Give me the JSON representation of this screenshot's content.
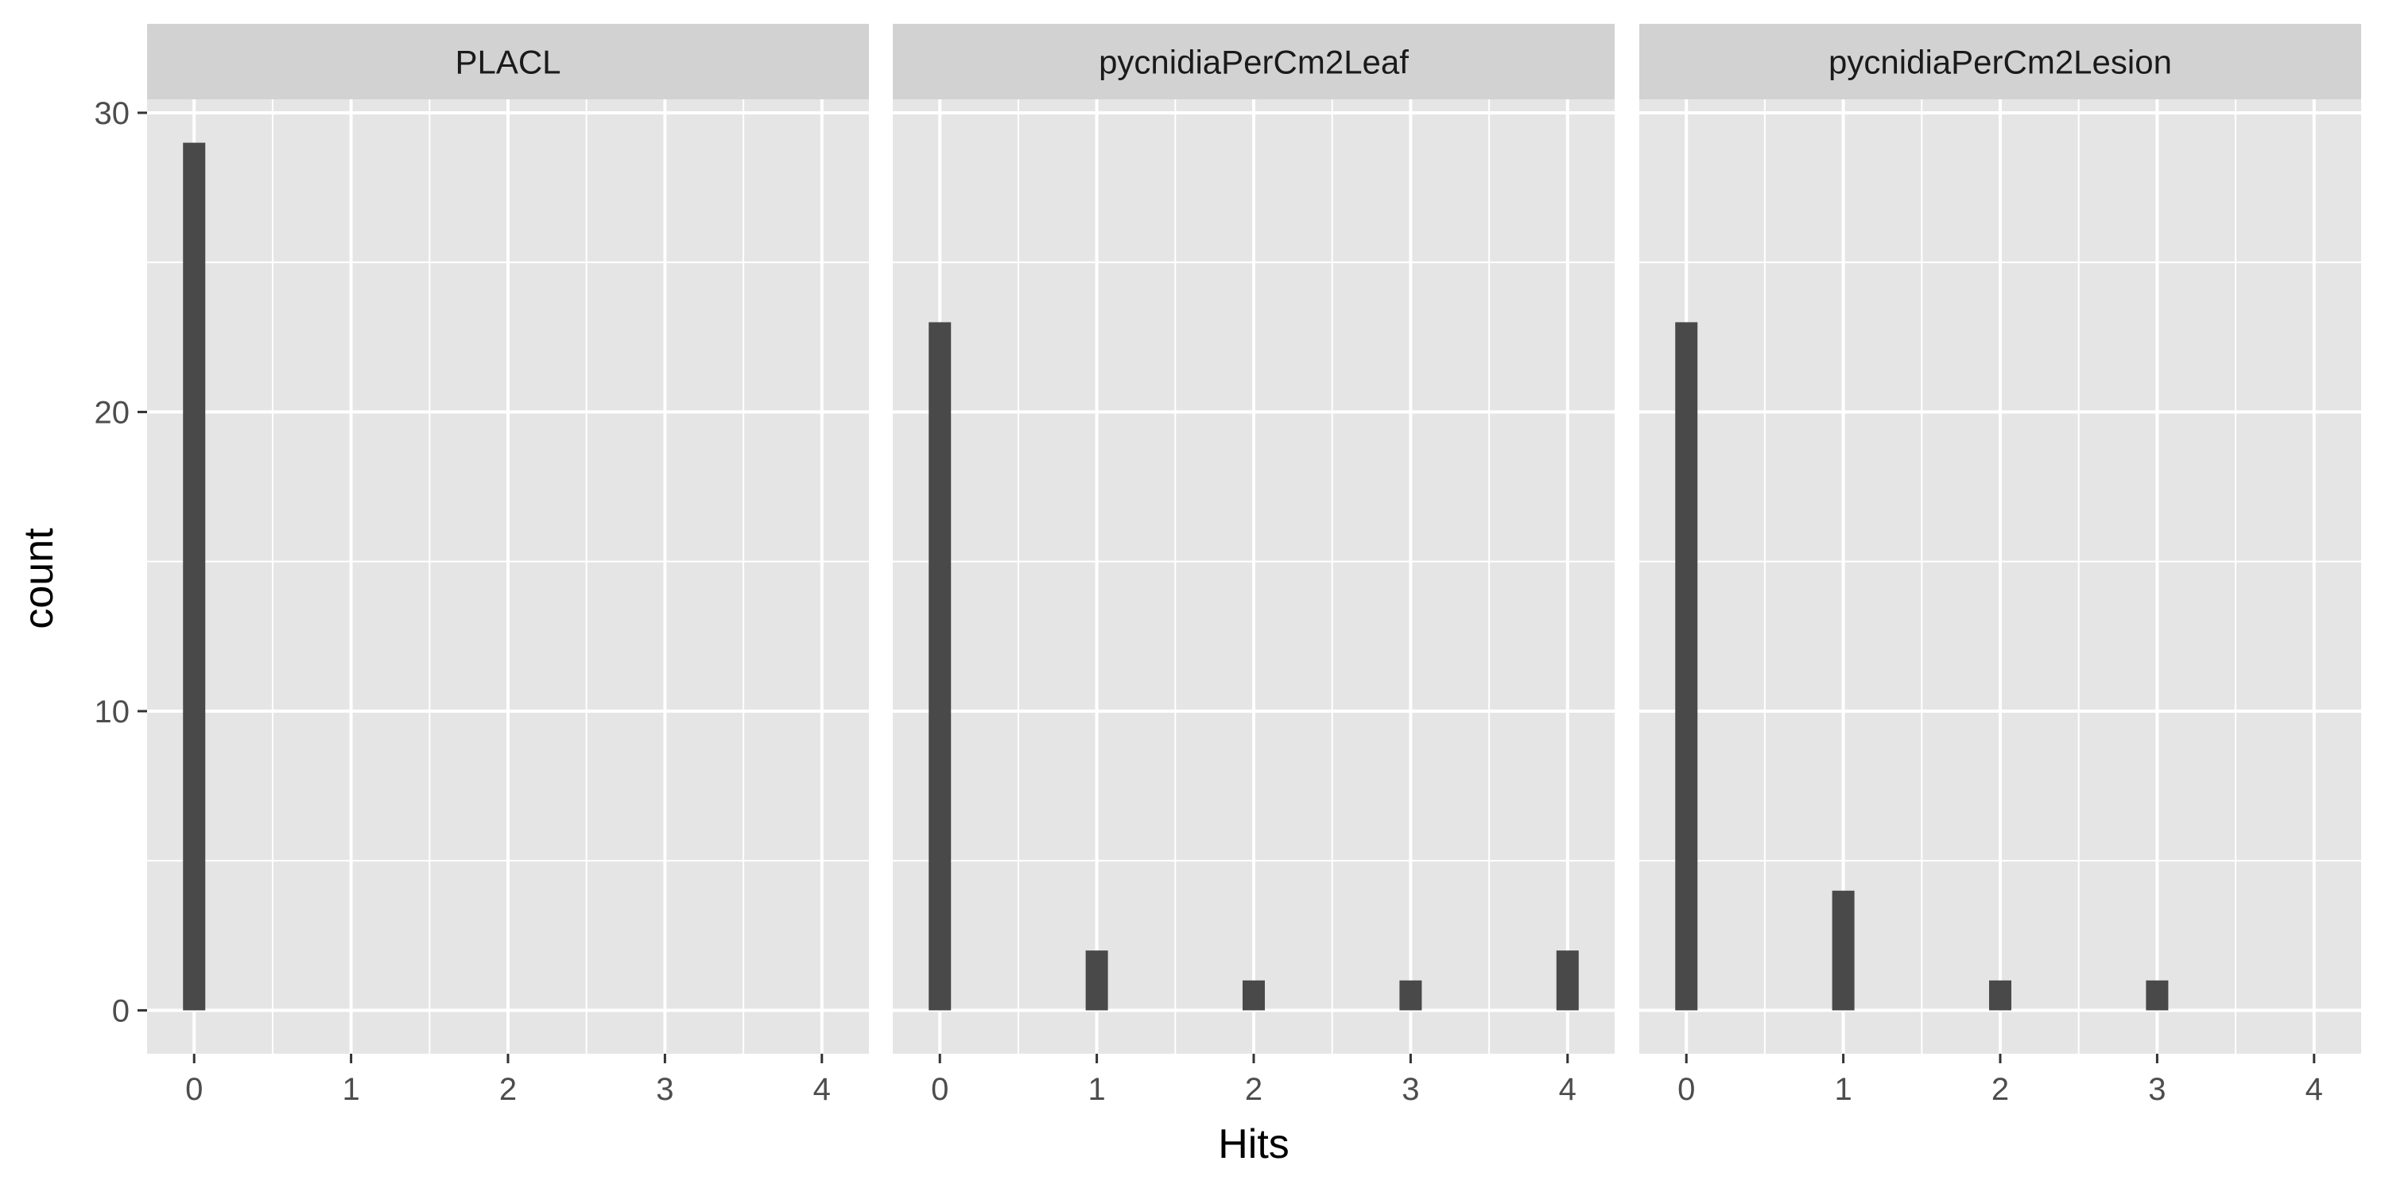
{
  "chart_data": {
    "type": "bar",
    "xlabel": "Hits",
    "ylabel": "count",
    "xlim": [
      -0.3,
      4.3
    ],
    "ylim": [
      -1.45,
      30.45
    ],
    "x_ticks": [
      0,
      1,
      2,
      3,
      4
    ],
    "y_ticks": [
      0,
      10,
      20,
      30
    ],
    "grid": true,
    "colors": {
      "bar": "#494949",
      "panel": "#e5e5e5",
      "strip": "#d2d2d2",
      "grid": "#ffffff"
    },
    "facets": [
      {
        "name": "PLACL",
        "x": [
          0,
          1,
          2,
          3,
          4
        ],
        "values": [
          29,
          0,
          0,
          0,
          0
        ]
      },
      {
        "name": "pycnidiaPerCm2Leaf",
        "x": [
          0,
          1,
          2,
          3,
          4
        ],
        "values": [
          23,
          2,
          1,
          1,
          2
        ]
      },
      {
        "name": "pycnidiaPerCm2Lesion",
        "x": [
          0,
          1,
          2,
          3,
          4
        ],
        "values": [
          23,
          4,
          1,
          1,
          0
        ]
      }
    ]
  }
}
